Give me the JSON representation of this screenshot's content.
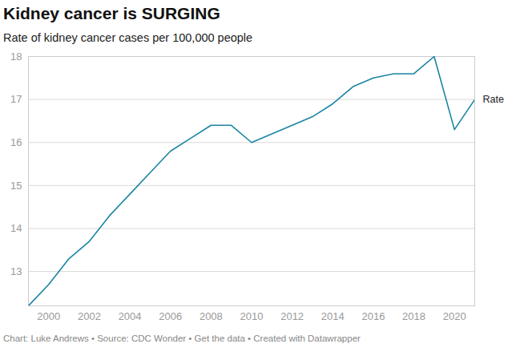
{
  "chart_data": {
    "type": "line",
    "title": "Kidney cancer is SURGING",
    "subtitle": "Rate of kidney cancer cases per 100,000 people",
    "caption": "Chart: Luke Andrews • Source: CDC Wonder • Get the data • Created with Datawrapper",
    "x": [
      1999,
      2000,
      2001,
      2002,
      2003,
      2004,
      2005,
      2006,
      2007,
      2008,
      2009,
      2010,
      2011,
      2012,
      2013,
      2014,
      2015,
      2016,
      2017,
      2018,
      2019,
      2020,
      2021
    ],
    "series": [
      {
        "name": "Rate",
        "color": "#1a85a3",
        "values": [
          12.2,
          12.7,
          13.3,
          13.7,
          14.3,
          14.8,
          15.3,
          15.8,
          16.1,
          16.4,
          16.4,
          16.0,
          16.2,
          16.4,
          16.6,
          16.9,
          17.3,
          17.5,
          17.6,
          17.6,
          18.0,
          16.3,
          17.0
        ]
      }
    ],
    "xlim": [
      1999,
      2021
    ],
    "xticks": [
      2000,
      2002,
      2004,
      2006,
      2008,
      2010,
      2012,
      2014,
      2016,
      2018,
      2020
    ],
    "ylim": [
      12.2,
      18
    ],
    "yticks": [
      13,
      14,
      15,
      16,
      17,
      18
    ],
    "grid": true
  }
}
